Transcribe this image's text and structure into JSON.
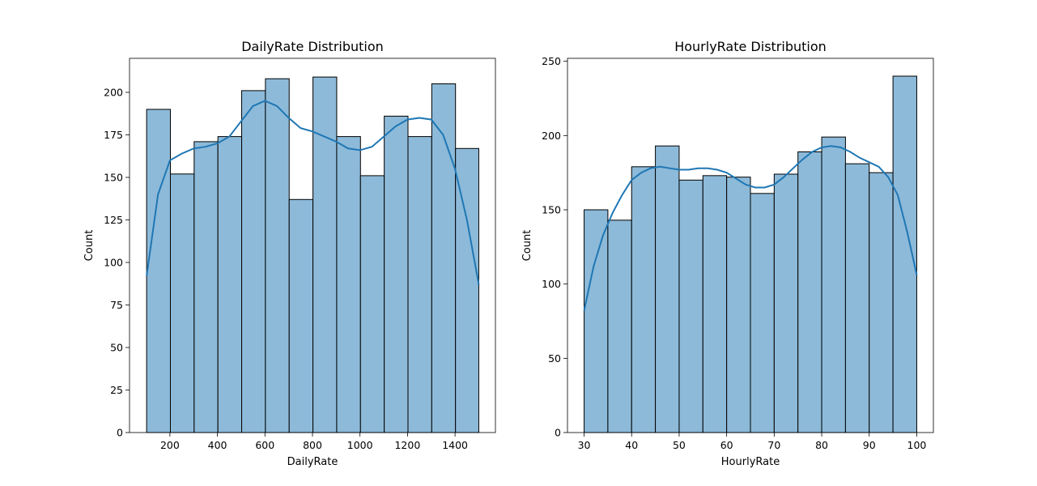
{
  "chart_data": [
    {
      "type": "bar",
      "title": "DailyRate Distribution",
      "xlabel": "DailyRate",
      "ylabel": "Count",
      "xlim": [
        30,
        1570
      ],
      "ylim": [
        0,
        220
      ],
      "xticks": [
        200,
        400,
        600,
        800,
        1000,
        1200,
        1400
      ],
      "yticks": [
        0,
        25,
        50,
        75,
        100,
        125,
        150,
        175,
        200
      ],
      "bin_edges": [
        102,
        202,
        302,
        402,
        502,
        602,
        702,
        802,
        902,
        1002,
        1102,
        1202,
        1302,
        1402,
        1500
      ],
      "values": [
        190,
        152,
        171,
        174,
        201,
        208,
        137,
        209,
        174,
        151,
        186,
        174,
        205,
        167
      ],
      "kde": {
        "x": [
          102,
          150,
          200,
          250,
          300,
          350,
          400,
          450,
          500,
          550,
          600,
          650,
          700,
          750,
          800,
          850,
          900,
          950,
          1000,
          1050,
          1100,
          1150,
          1200,
          1250,
          1300,
          1350,
          1400,
          1450,
          1500
        ],
        "y": [
          92,
          140,
          160,
          164,
          167,
          168,
          170,
          174,
          183,
          192,
          195,
          192,
          185,
          179,
          177,
          174,
          171,
          167,
          166,
          168,
          174,
          180,
          184,
          185,
          184,
          175,
          155,
          125,
          87
        ]
      },
      "bar_color": "#8dbad9",
      "edge_color": "#000000",
      "line_color": "#1f77b4"
    },
    {
      "type": "bar",
      "title": "HourlyRate Distribution",
      "xlabel": "HourlyRate",
      "ylabel": "Count",
      "xlim": [
        26.5,
        103.5
      ],
      "ylim": [
        0,
        252
      ],
      "xticks": [
        30,
        40,
        50,
        60,
        70,
        80,
        90,
        100
      ],
      "yticks": [
        0,
        50,
        100,
        150,
        200,
        250
      ],
      "bin_edges": [
        30,
        35,
        40,
        45,
        50,
        55,
        60,
        65,
        70,
        75,
        80,
        85,
        90,
        95,
        100
      ],
      "values": [
        150,
        143,
        179,
        193,
        170,
        173,
        172,
        161,
        174,
        189,
        199,
        181,
        175,
        240
      ],
      "kde": {
        "x": [
          30,
          32,
          34,
          36,
          38,
          40,
          42,
          44,
          46,
          48,
          50,
          52,
          54,
          56,
          58,
          60,
          62,
          64,
          66,
          68,
          70,
          72,
          74,
          76,
          78,
          80,
          82,
          84,
          86,
          88,
          90,
          92,
          94,
          96,
          98,
          100
        ],
        "y": [
          82,
          112,
          133,
          148,
          160,
          170,
          175,
          178,
          179,
          178,
          177,
          177,
          178,
          178,
          177,
          175,
          171,
          167,
          165,
          165,
          167,
          172,
          178,
          184,
          189,
          192,
          193,
          192,
          189,
          185,
          182,
          179,
          172,
          160,
          135,
          106
        ]
      },
      "bar_color": "#8dbad9",
      "edge_color": "#000000",
      "line_color": "#1f77b4"
    }
  ]
}
